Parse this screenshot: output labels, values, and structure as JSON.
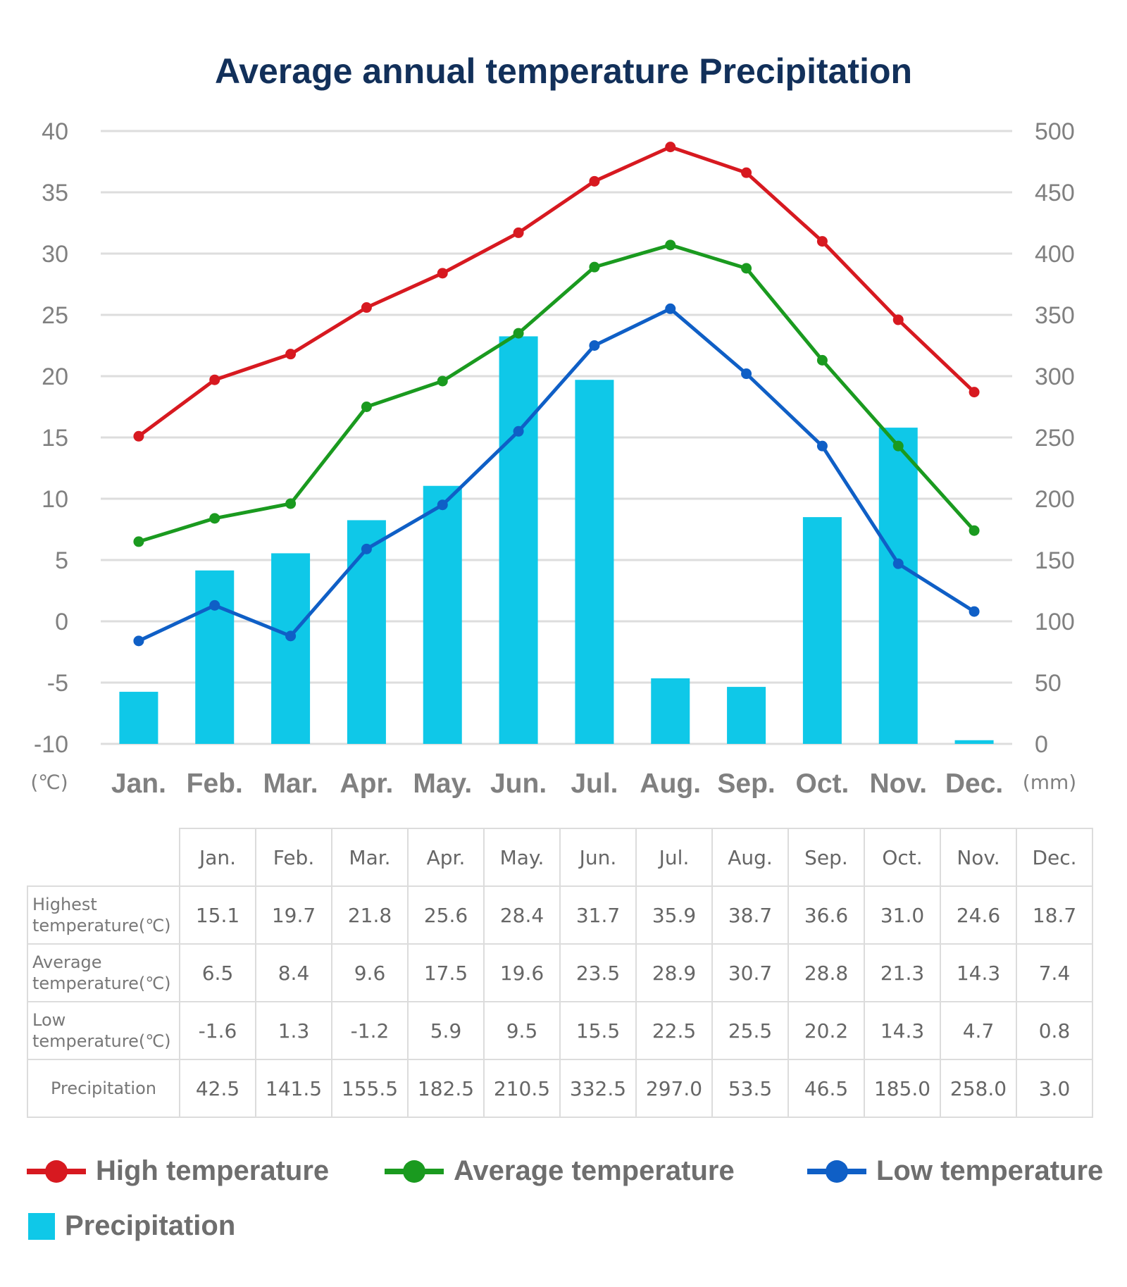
{
  "chart_data": {
    "type": "bar+line",
    "title": "Average annual temperature Precipitation",
    "categories": [
      "Jan.",
      "Feb.",
      "Mar.",
      "Apr.",
      "May.",
      "Jun.",
      "Jul.",
      "Aug.",
      "Sep.",
      "Oct.",
      "Nov.",
      "Dec."
    ],
    "left_axis": {
      "unit": "(℃)",
      "min": -10,
      "max": 40,
      "ticks": [
        "40",
        "35",
        "30",
        "25",
        "20",
        "15",
        "10",
        "5",
        "0",
        "-5",
        "-10"
      ]
    },
    "right_axis": {
      "unit": "(mm)",
      "min": 0,
      "max": 500,
      "ticks": [
        "500",
        "450",
        "400",
        "350",
        "300",
        "250",
        "200",
        "150",
        "100",
        "50",
        "0"
      ]
    },
    "grid": true,
    "legend_position": "bottom",
    "series": [
      {
        "name": "High temperature",
        "kind": "line",
        "axis": "left",
        "color": "#d71920",
        "values": [
          15.1,
          19.7,
          21.8,
          25.6,
          28.4,
          31.7,
          35.9,
          38.7,
          36.6,
          31.0,
          24.6,
          18.7
        ]
      },
      {
        "name": "Average temperature",
        "kind": "line",
        "axis": "left",
        "color": "#1a9a1f",
        "values": [
          6.5,
          8.4,
          9.6,
          17.5,
          19.6,
          23.5,
          28.9,
          30.7,
          28.8,
          21.3,
          14.3,
          7.4
        ]
      },
      {
        "name": "Low temperature",
        "kind": "line",
        "axis": "left",
        "color": "#0f5fc6",
        "values": [
          -1.6,
          1.3,
          -1.2,
          5.9,
          9.5,
          15.5,
          22.5,
          25.5,
          20.2,
          14.3,
          4.7,
          0.8
        ]
      },
      {
        "name": "Precipitation",
        "kind": "bar",
        "axis": "right",
        "color": "#0fc8e8",
        "values": [
          42.5,
          141.5,
          155.5,
          182.5,
          210.5,
          332.5,
          297.0,
          53.5,
          46.5,
          185.0,
          258.0,
          3.0
        ]
      }
    ]
  },
  "table": {
    "header": [
      "Jan.",
      "Feb.",
      "Mar.",
      "Apr.",
      "May.",
      "Jun.",
      "Jul.",
      "Aug.",
      "Sep.",
      "Oct.",
      "Nov.",
      "Dec."
    ],
    "rows": [
      {
        "label_line1": "Highest",
        "label_line2": "temperature(℃)",
        "cells": [
          "15.1",
          "19.7",
          "21.8",
          "25.6",
          "28.4",
          "31.7",
          "35.9",
          "38.7",
          "36.6",
          "31.0",
          "24.6",
          "18.7"
        ]
      },
      {
        "label_line1": "Average",
        "label_line2": "temperature(℃)",
        "cells": [
          "6.5",
          "8.4",
          "9.6",
          "17.5",
          "19.6",
          "23.5",
          "28.9",
          "30.7",
          "28.8",
          "21.3",
          "14.3",
          "7.4"
        ]
      },
      {
        "label_line1": "Low",
        "label_line2": "temperature(℃)",
        "cells": [
          "-1.6",
          "1.3",
          "-1.2",
          "5.9",
          "9.5",
          "15.5",
          "22.5",
          "25.5",
          "20.2",
          "14.3",
          "4.7",
          "0.8"
        ]
      },
      {
        "label_line1": "Precipitation",
        "label_line2": "",
        "cells": [
          "42.5",
          "141.5",
          "155.5",
          "182.5",
          "210.5",
          "332.5",
          "297.0",
          "53.5",
          "46.5",
          "185.0",
          "258.0",
          "3.0"
        ]
      }
    ]
  },
  "legend": {
    "high": {
      "label": "High temperature",
      "color": "#d71920"
    },
    "average": {
      "label": "Average temperature",
      "color": "#1a9a1f"
    },
    "low": {
      "label": "Low temperature",
      "color": "#0f5fc6"
    },
    "precipitation": {
      "label": "Precipitation",
      "color": "#0fc8e8"
    }
  }
}
